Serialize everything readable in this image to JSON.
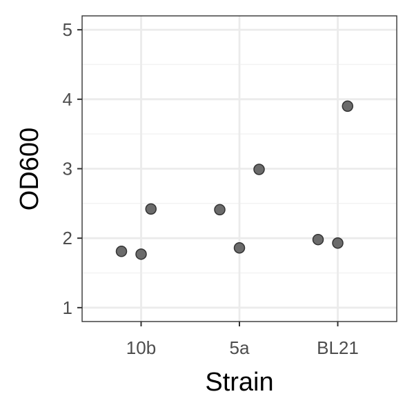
{
  "chart_data": {
    "type": "scatter",
    "title": "",
    "xlabel": "Strain",
    "ylabel": "OD600",
    "categories": [
      "10b",
      "5a",
      "BL21"
    ],
    "y_ticks": [
      "1",
      "2",
      "3",
      "4",
      "5"
    ],
    "ylim": [
      0.8,
      5.2
    ],
    "grid": true,
    "legend": "none",
    "points": [
      {
        "category": "10b",
        "jitter": -0.2,
        "y": 1.81
      },
      {
        "category": "10b",
        "jitter": 0.0,
        "y": 1.77
      },
      {
        "category": "10b",
        "jitter": 0.1,
        "y": 2.42
      },
      {
        "category": "5a",
        "jitter": -0.2,
        "y": 2.41
      },
      {
        "category": "5a",
        "jitter": 0.0,
        "y": 1.86
      },
      {
        "category": "5a",
        "jitter": 0.2,
        "y": 2.99
      },
      {
        "category": "BL21",
        "jitter": -0.2,
        "y": 1.98
      },
      {
        "category": "BL21",
        "jitter": 0.0,
        "y": 1.93
      },
      {
        "category": "BL21",
        "jitter": 0.1,
        "y": 3.9
      }
    ],
    "colors": {
      "point_fill": "#6b6b6b",
      "point_stroke": "#333333",
      "grid_major": "#ebebeb",
      "grid_minor": "#f2f2f2",
      "panel_border": "#333333"
    }
  }
}
